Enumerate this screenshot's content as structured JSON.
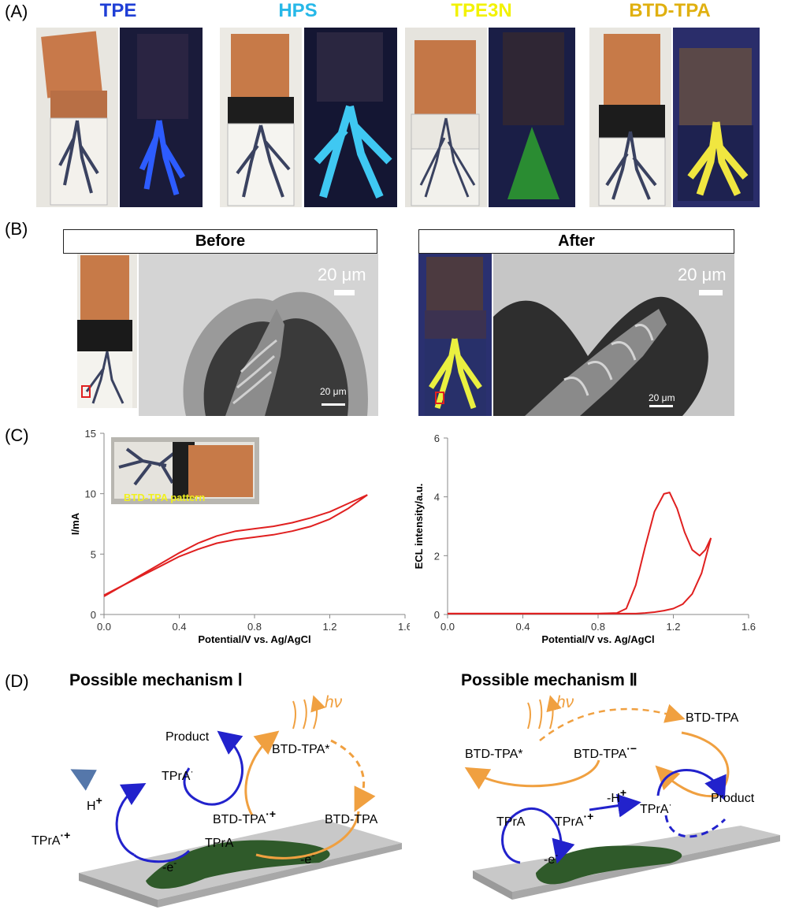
{
  "panel_a": {
    "letter": "(A)",
    "materials": [
      {
        "name": "TPE",
        "color": "#1f3fd6"
      },
      {
        "name": "HPS",
        "color": "#27b8e8"
      },
      {
        "name": "TPE3N",
        "color": "#f2f200"
      },
      {
        "name": "BTD-TPA",
        "color": "#e0b010"
      }
    ]
  },
  "panel_b": {
    "letter": "(B)",
    "before_label": "Before",
    "after_label": "After",
    "scale_bar_large": "20 μm",
    "scale_bar_small": "20 μm"
  },
  "panel_c": {
    "letter": "(C)",
    "inset_label": "BTD-TPA pattern"
  },
  "chart_data": [
    {
      "type": "line",
      "title": "",
      "xlabel": "Potential/V vs. Ag/AgCl",
      "ylabel": "I/mA",
      "xlim": [
        0,
        1.6
      ],
      "ylim": [
        0,
        15
      ],
      "xticks": [
        "0.0",
        "0.4",
        "0.8",
        "1.2",
        "1.6"
      ],
      "yticks": [
        "0",
        "5",
        "10",
        "15"
      ],
      "series": [
        {
          "segment": "forward",
          "color": "#e02020",
          "x": [
            0.0,
            0.1,
            0.2,
            0.3,
            0.4,
            0.5,
            0.6,
            0.7,
            0.8,
            0.9,
            1.0,
            1.1,
            1.2,
            1.3,
            1.4
          ],
          "y": [
            1.6,
            2.4,
            3.2,
            4.0,
            4.8,
            5.4,
            5.9,
            6.2,
            6.4,
            6.6,
            6.9,
            7.3,
            7.9,
            8.8,
            9.9
          ]
        },
        {
          "segment": "reverse",
          "color": "#e02020",
          "x": [
            1.4,
            1.3,
            1.2,
            1.1,
            1.0,
            0.9,
            0.8,
            0.7,
            0.6,
            0.5,
            0.4,
            0.3,
            0.2,
            0.1,
            0.0
          ],
          "y": [
            9.9,
            9.2,
            8.5,
            8.0,
            7.6,
            7.3,
            7.1,
            6.9,
            6.5,
            5.9,
            5.1,
            4.2,
            3.3,
            2.4,
            1.5
          ]
        }
      ]
    },
    {
      "type": "line",
      "title": "",
      "xlabel": "Potential/V vs. Ag/AgCl",
      "ylabel": "ECL intensity/a.u.",
      "xlim": [
        0,
        1.6
      ],
      "ylim": [
        0,
        6
      ],
      "xticks": [
        "0.0",
        "0.4",
        "0.8",
        "1.2",
        "1.6"
      ],
      "yticks": [
        "0",
        "2",
        "4",
        "6"
      ],
      "series": [
        {
          "segment": "forward",
          "color": "#e02020",
          "x": [
            0.0,
            0.4,
            0.8,
            0.9,
            0.95,
            1.0,
            1.05,
            1.1,
            1.15,
            1.18,
            1.22,
            1.26,
            1.3,
            1.34,
            1.37,
            1.4
          ],
          "y": [
            0.03,
            0.03,
            0.03,
            0.05,
            0.2,
            1.0,
            2.3,
            3.5,
            4.1,
            4.15,
            3.6,
            2.8,
            2.2,
            2.0,
            2.2,
            2.6
          ]
        },
        {
          "segment": "reverse",
          "color": "#e02020",
          "x": [
            1.4,
            1.35,
            1.3,
            1.25,
            1.2,
            1.15,
            1.1,
            1.05,
            1.0,
            0.9,
            0.4,
            0.0
          ],
          "y": [
            2.6,
            1.4,
            0.7,
            0.35,
            0.2,
            0.13,
            0.08,
            0.05,
            0.03,
            0.03,
            0.03,
            0.03
          ]
        }
      ]
    }
  ],
  "panel_d": {
    "letter": "(D)",
    "mech1": {
      "title": "Possible mechanism Ⅰ",
      "hv": "hν",
      "product": "Product",
      "tpra_radical": "TPrA",
      "tpra_radical_sup": "·",
      "h_plus": "H",
      "h_plus_sup": "+",
      "btd_excited": "BTD-TPA*",
      "tpra_cation": "TPrA",
      "tpra_cation_sup": "·+",
      "btd_cation": "BTD-TPA",
      "btd_cation_sup": "·+",
      "btd": "BTD-TPA",
      "tpra": "TPrA",
      "e1": "-e",
      "e1_sup": "-",
      "e2": "-e",
      "e2_sup": "-"
    },
    "mech2": {
      "title": "Possible mechanism Ⅱ",
      "hv": "hν",
      "btd": "BTD-TPA",
      "btd_excited": "BTD-TPA*",
      "btd_anion": "BTD-TPA",
      "btd_anion_sup": "·−",
      "tpra": "TPrA",
      "tpra_cation": "TPrA",
      "tpra_cation_sup": "·+",
      "minus_h": "-H",
      "minus_h_sup": "+",
      "tpra_radical": "TPrA",
      "tpra_radical_sup": "·",
      "product": "Product",
      "e": "-e",
      "e_sup": "-"
    }
  }
}
